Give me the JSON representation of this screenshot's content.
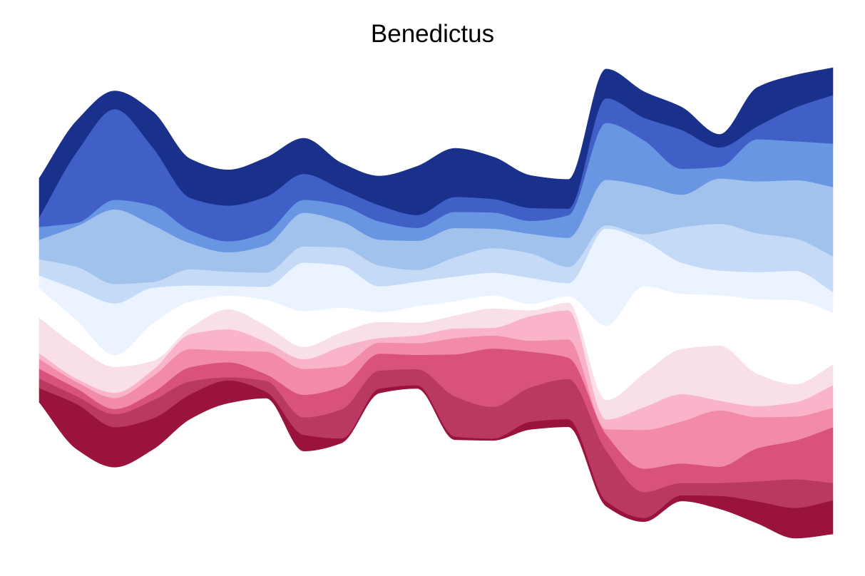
{
  "chart_data": {
    "type": "area",
    "subtype": "streamgraph",
    "title": "Benedictus",
    "xlabel": "",
    "ylabel": "",
    "axes_visible": false,
    "grid": false,
    "legend": "none",
    "baseline": "wiggle",
    "interpolation": "smooth",
    "x": [
      0,
      1,
      2,
      3,
      4,
      5,
      6,
      7,
      8,
      9,
      10,
      11,
      12,
      13,
      14,
      15,
      16,
      17,
      18,
      19,
      20,
      21
    ],
    "series": [
      {
        "color": "#9a133d",
        "values": [
          22,
          70,
          62,
          48,
          38,
          35,
          10,
          25,
          7,
          7,
          5,
          5,
          3,
          12,
          12,
          8,
          6,
          9,
          20,
          34,
          47,
          52
        ]
      },
      {
        "color": "#b93961",
        "values": [
          15,
          12,
          20,
          28,
          20,
          5,
          17,
          27,
          45,
          28,
          25,
          62,
          49,
          53,
          62,
          78,
          40,
          19,
          20,
          31,
          44,
          27
        ]
      },
      {
        "color": "#d8527c",
        "values": [
          15,
          12,
          8,
          12,
          22,
          23,
          10,
          35,
          35,
          26,
          22,
          65,
          90,
          55,
          33,
          25,
          36,
          30,
          25,
          51,
          60,
          86
        ]
      },
      {
        "color": "#f28aaa",
        "values": [
          15,
          10,
          17,
          25,
          28,
          18,
          35,
          40,
          32,
          17,
          18,
          25,
          20,
          17,
          28,
          8,
          60,
          65,
          87,
          48,
          37,
          30
        ]
      },
      {
        "color": "#f9b4c9",
        "values": [
          9,
          5,
          8,
          10,
          23,
          33,
          15,
          15,
          30,
          7,
          12,
          15,
          12,
          38,
          45,
          15,
          35,
          42,
          15,
          17,
          22,
          35
        ]
      },
      {
        "color": "#f9e0e8",
        "values": [
          55,
          50,
          40,
          14,
          10,
          31,
          25,
          19,
          22,
          25,
          20,
          20,
          30,
          9,
          12,
          30,
          52,
          70,
          85,
          50,
          28,
          32
        ]
      },
      {
        "color": "#ffffff",
        "values": [
          45,
          40,
          18,
          58,
          40,
          21,
          40,
          55,
          38,
          15,
          25,
          22,
          20,
          10,
          10,
          115,
          135,
          85,
          78,
          115,
          130,
          80
        ]
      },
      {
        "color": "#eaf3ff",
        "values": [
          20,
          48,
          80,
          55,
          25,
          15,
          20,
          75,
          65,
          40,
          38,
          38,
          35,
          40,
          20,
          150,
          70,
          48,
          38,
          42,
          45,
          32
        ]
      },
      {
        "color": "#c5daf6",
        "values": [
          25,
          35,
          30,
          9,
          25,
          22,
          22,
          25,
          28,
          32,
          18,
          30,
          38,
          38,
          25,
          5,
          10,
          55,
          72,
          60,
          50,
          55
        ]
      },
      {
        "color": "#a1c2ed",
        "values": [
          30,
          63,
          115,
          88,
          40,
          30,
          42,
          52,
          40,
          40,
          45,
          45,
          30,
          30,
          45,
          70,
          75,
          50,
          70,
          80,
          90,
          107
        ]
      },
      {
        "color": "#6996e3",
        "values": [
          20,
          5,
          15,
          30,
          20,
          17,
          20,
          20,
          25,
          28,
          20,
          25,
          25,
          20,
          35,
          88,
          70,
          40,
          18,
          65,
          60,
          67
        ]
      },
      {
        "color": "#4060c8",
        "values": [
          15,
          110,
          140,
          90,
          50,
          55,
          55,
          40,
          25,
          25,
          20,
          23,
          21,
          20,
          10,
          38,
          35,
          60,
          30,
          20,
          52,
          75
        ]
      },
      {
        "color": "#1a318b",
        "values": [
          60,
          48,
          28,
          55,
          60,
          55,
          60,
          55,
          40,
          45,
          75,
          75,
          65,
          50,
          45,
          45,
          40,
          35,
          20,
          60,
          50,
          42
        ]
      }
    ]
  }
}
